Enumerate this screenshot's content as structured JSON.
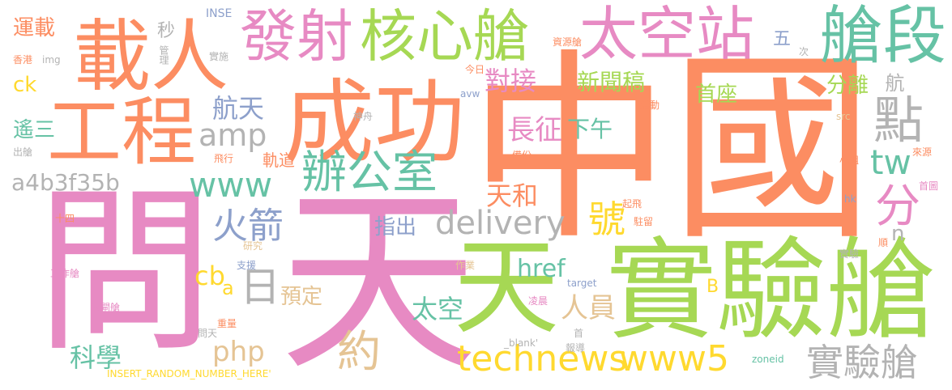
{
  "palette": {
    "orange": "#fc8d62",
    "pink": "#e78ac3",
    "green": "#a6d854",
    "teal": "#66c2a5",
    "blue": "#8da0cb",
    "yellow": "#ffd92f",
    "tan": "#e5c494",
    "gray": "#b3b3b3"
  },
  "words": [
    {
      "text": "中國",
      "color": "orange"
    },
    {
      "text": "天",
      "color": "pink"
    },
    {
      "text": "問",
      "color": "pink"
    },
    {
      "text": "成功",
      "color": "orange"
    },
    {
      "text": "實驗艙",
      "color": "green"
    },
    {
      "text": "天",
      "color": "green"
    },
    {
      "text": "載人",
      "color": "orange"
    },
    {
      "text": "工程",
      "color": "orange"
    },
    {
      "text": "發射",
      "color": "pink"
    },
    {
      "text": "核心艙",
      "color": "green"
    },
    {
      "text": "太空站",
      "color": "pink"
    },
    {
      "text": "艙段",
      "color": "teal"
    },
    {
      "text": "辦公室",
      "color": "teal"
    },
    {
      "text": "technews",
      "color": "yellow"
    },
    {
      "text": "www5",
      "color": "yellow"
    },
    {
      "text": "delivery",
      "color": "gray"
    },
    {
      "text": "點",
      "color": "gray"
    },
    {
      "text": "實驗艙",
      "color": "gray"
    },
    {
      "text": "www",
      "color": "teal"
    },
    {
      "text": "amp",
      "color": "gray"
    },
    {
      "text": "火箭",
      "color": "blue"
    },
    {
      "text": "約",
      "color": "tan"
    },
    {
      "text": "號",
      "color": "yellow"
    },
    {
      "text": "分",
      "color": "pink"
    },
    {
      "text": "tw",
      "color": "teal"
    },
    {
      "text": "日",
      "color": "gray"
    },
    {
      "text": "對接",
      "color": "pink"
    },
    {
      "text": "航天",
      "color": "blue"
    },
    {
      "text": "a4b3f35b",
      "color": "gray"
    },
    {
      "text": "科學",
      "color": "teal"
    },
    {
      "text": "php",
      "color": "tan"
    },
    {
      "text": "太空",
      "color": "teal"
    },
    {
      "text": "天和",
      "color": "orange"
    },
    {
      "text": "長征",
      "color": "pink"
    },
    {
      "text": "人員",
      "color": "tan"
    },
    {
      "text": "href",
      "color": "teal"
    },
    {
      "text": "新聞稿",
      "color": "green"
    },
    {
      "text": "分離",
      "color": "green"
    },
    {
      "text": "首座",
      "color": "green"
    },
    {
      "text": "下午",
      "color": "teal"
    },
    {
      "text": "指出",
      "color": "blue"
    },
    {
      "text": "預定",
      "color": "tan"
    },
    {
      "text": "cb",
      "color": "yellow"
    },
    {
      "text": "遙三",
      "color": "teal"
    },
    {
      "text": "運載",
      "color": "orange"
    },
    {
      "text": "ck",
      "color": "yellow"
    },
    {
      "text": "軌道",
      "color": "orange"
    },
    {
      "text": "航",
      "color": "gray"
    },
    {
      "text": "五",
      "color": "blue"
    },
    {
      "text": "秒",
      "color": "gray"
    },
    {
      "text": "n",
      "color": "gray"
    },
    {
      "text": "B",
      "color": "yellow"
    },
    {
      "text": "a",
      "color": "yellow"
    },
    {
      "text": "INSE",
      "color": "blue"
    },
    {
      "text": "香港",
      "color": "orange"
    },
    {
      "text": "img",
      "color": "gray"
    },
    {
      "text": "管理",
      "color": "gray"
    },
    {
      "text": "實施",
      "color": "gray"
    },
    {
      "text": "資源艙",
      "color": "orange"
    },
    {
      "text": "次",
      "color": "gray"
    },
    {
      "text": "今日",
      "color": "orange"
    },
    {
      "text": "avw",
      "color": "blue"
    },
    {
      "text": "活動",
      "color": "orange"
    },
    {
      "text": "src",
      "color": "tan"
    },
    {
      "text": "神舟",
      "color": "gray"
    },
    {
      "text": "備份",
      "color": "orange"
    },
    {
      "text": "來源",
      "color": "orange"
    },
    {
      "text": "出艙",
      "color": "gray"
    },
    {
      "text": "飛行",
      "color": "orange"
    },
    {
      "text": "小組",
      "color": "orange"
    },
    {
      "text": "首圖",
      "color": "pink"
    },
    {
      "text": "起飛",
      "color": "orange"
    },
    {
      "text": "hk",
      "color": "blue"
    },
    {
      "text": "駐留",
      "color": "orange"
    },
    {
      "text": "十四",
      "color": "orange"
    },
    {
      "text": "研究",
      "color": "tan"
    },
    {
      "text": "支援",
      "color": "blue"
    },
    {
      "text": "工作艙",
      "color": "pink"
    },
    {
      "text": "作業",
      "color": "tan"
    },
    {
      "text": "target",
      "color": "blue"
    },
    {
      "text": "凌晨",
      "color": "pink"
    },
    {
      "text": "順",
      "color": "orange"
    },
    {
      "text": "實驗",
      "color": "gray"
    },
    {
      "text": "氣閘艙",
      "color": "pink"
    },
    {
      "text": "重量",
      "color": "orange"
    },
    {
      "text": "問天",
      "color": "gray"
    },
    {
      "text": "首",
      "color": "gray"
    },
    {
      "text": "_blank'",
      "color": "gray"
    },
    {
      "text": "報導",
      "color": "gray"
    },
    {
      "text": "zoneid",
      "color": "teal"
    },
    {
      "text": "INSERT_RANDOM_NUMBER_HERE'",
      "color": "yellow"
    }
  ]
}
